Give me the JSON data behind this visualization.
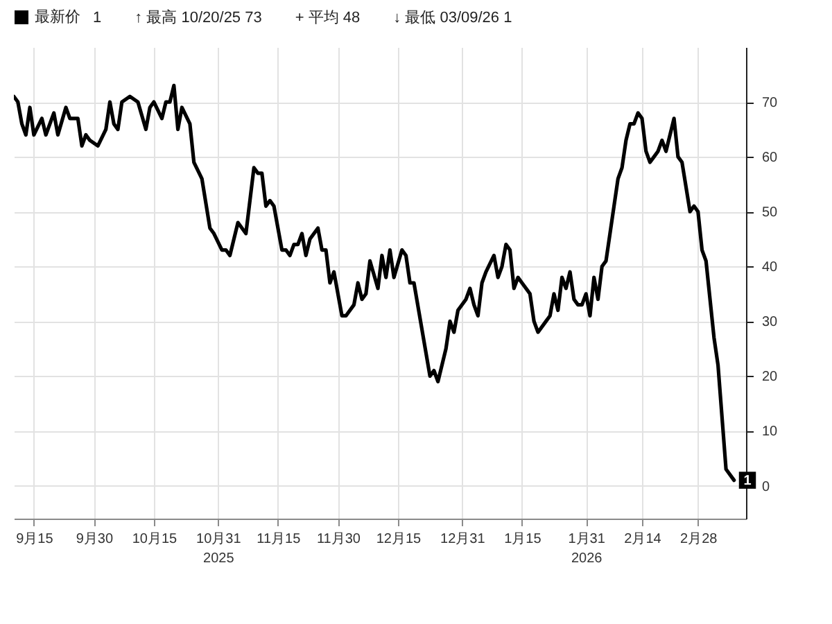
{
  "chart_data": {
    "type": "line",
    "x": [
      "2025-09-10",
      "2025-09-11",
      "2025-09-12",
      "2025-09-13",
      "2025-09-14",
      "2025-09-15",
      "2025-09-17",
      "2025-09-18",
      "2025-09-20",
      "2025-09-21",
      "2025-09-23",
      "2025-09-24",
      "2025-09-26",
      "2025-09-27",
      "2025-09-28",
      "2025-09-29",
      "2025-10-01",
      "2025-10-03",
      "2025-10-04",
      "2025-10-05",
      "2025-10-06",
      "2025-10-07",
      "2025-10-09",
      "2025-10-11",
      "2025-10-13",
      "2025-10-14",
      "2025-10-15",
      "2025-10-17",
      "2025-10-18",
      "2025-10-19",
      "2025-10-20",
      "2025-10-21",
      "2025-10-22",
      "2025-10-24",
      "2025-10-25",
      "2025-10-27",
      "2025-10-29",
      "2025-10-30",
      "2025-11-01",
      "2025-11-02",
      "2025-11-03",
      "2025-11-05",
      "2025-11-07",
      "2025-11-09",
      "2025-11-10",
      "2025-11-11",
      "2025-11-12",
      "2025-11-13",
      "2025-11-14",
      "2025-11-16",
      "2025-11-17",
      "2025-11-18",
      "2025-11-19",
      "2025-11-20",
      "2025-11-21",
      "2025-11-22",
      "2025-11-23",
      "2025-11-25",
      "2025-11-26",
      "2025-11-27",
      "2025-11-28",
      "2025-11-29",
      "2025-12-01",
      "2025-12-02",
      "2025-12-04",
      "2025-12-05",
      "2025-12-06",
      "2025-12-07",
      "2025-12-08",
      "2025-12-10",
      "2025-12-11",
      "2025-12-12",
      "2025-12-13",
      "2025-12-14",
      "2025-12-16",
      "2025-12-17",
      "2025-12-18",
      "2025-12-19",
      "2025-12-23",
      "2025-12-24",
      "2025-12-25",
      "2025-12-27",
      "2025-12-28",
      "2025-12-29",
      "2025-12-30",
      "2026-01-01",
      "2026-01-02",
      "2026-01-03",
      "2026-01-04",
      "2026-01-05",
      "2026-01-06",
      "2026-01-08",
      "2026-01-09",
      "2026-01-10",
      "2026-01-11",
      "2026-01-12",
      "2026-01-13",
      "2026-01-14",
      "2026-01-15",
      "2026-01-17",
      "2026-01-18",
      "2026-01-19",
      "2026-01-21",
      "2026-01-22",
      "2026-01-23",
      "2026-01-24",
      "2026-01-25",
      "2026-01-26",
      "2026-01-27",
      "2026-01-28",
      "2026-01-29",
      "2026-01-30",
      "2026-01-31",
      "2026-02-01",
      "2026-02-02",
      "2026-02-03",
      "2026-02-04",
      "2026-02-05",
      "2026-02-06",
      "2026-02-07",
      "2026-02-08",
      "2026-02-09",
      "2026-02-10",
      "2026-02-11",
      "2026-02-12",
      "2026-02-13",
      "2026-02-14",
      "2026-02-15",
      "2026-02-16",
      "2026-02-17",
      "2026-02-18",
      "2026-02-19",
      "2026-02-20",
      "2026-02-22",
      "2026-02-23",
      "2026-02-24",
      "2026-02-26",
      "2026-02-27",
      "2026-02-28",
      "2026-03-01",
      "2026-03-02",
      "2026-03-04",
      "2026-03-05",
      "2026-03-07",
      "2026-03-09"
    ],
    "series": [
      {
        "name": "最新价",
        "color": "#000000",
        "values": [
          71,
          70,
          66,
          64,
          69,
          64,
          67,
          64,
          68,
          64,
          69,
          67,
          67,
          62,
          64,
          63,
          62,
          65,
          70,
          66,
          65,
          70,
          71,
          70,
          65,
          69,
          70,
          67,
          70,
          70,
          73,
          65,
          69,
          66,
          59,
          56,
          47,
          46,
          43,
          43,
          42,
          48,
          46,
          58,
          57,
          57,
          51,
          52,
          51,
          43,
          43,
          42,
          44,
          44,
          46,
          42,
          45,
          47,
          43,
          43,
          37,
          39,
          31,
          31,
          33,
          37,
          34,
          35,
          41,
          36,
          42,
          38,
          43,
          38,
          43,
          42,
          37,
          37,
          20,
          21,
          19,
          25,
          30,
          28,
          32,
          34,
          36,
          33,
          31,
          37,
          39,
          42,
          38,
          40,
          44,
          43,
          36,
          38,
          37,
          35,
          30,
          28,
          30,
          31,
          35,
          32,
          38,
          36,
          39,
          34,
          33,
          33,
          35,
          31,
          38,
          34,
          40,
          41,
          46,
          51,
          56,
          58,
          63,
          66,
          66,
          68,
          67,
          61,
          59,
          60,
          61,
          63,
          61,
          67,
          60,
          59,
          50,
          51,
          50,
          43,
          41,
          27,
          22,
          3,
          1
        ],
        "value_labels": [
          null,
          null,
          null,
          null,
          null,
          null,
          null,
          null,
          null,
          null,
          null,
          null,
          null,
          null,
          null,
          null,
          null,
          null,
          null,
          null,
          null,
          null,
          null,
          null,
          null,
          null,
          null,
          null,
          null,
          null,
          null,
          null,
          null,
          null,
          null,
          null,
          null,
          null,
          null,
          null,
          null,
          null,
          null,
          null,
          null,
          null,
          null,
          null,
          null,
          null,
          null,
          null,
          null,
          null,
          null,
          null,
          null,
          null,
          null,
          null,
          null,
          null,
          null,
          null,
          null,
          null,
          null,
          null,
          null,
          null,
          null,
          null,
          null,
          null,
          null,
          null,
          null,
          null,
          null,
          null,
          null,
          null,
          null,
          null,
          null,
          null,
          null,
          null,
          null,
          null,
          null,
          null,
          null,
          null,
          null,
          null,
          null,
          null,
          null,
          null,
          null,
          null,
          null,
          null,
          null,
          null,
          null,
          null,
          null,
          null,
          null,
          null,
          null,
          null,
          null,
          null,
          null,
          null,
          null,
          null,
          null,
          null,
          null,
          null,
          null,
          null,
          null,
          null,
          null,
          null,
          null,
          null,
          null,
          null,
          null,
          null,
          null,
          null,
          null,
          null,
          null,
          null,
          null,
          null,
          "1"
        ]
      }
    ],
    "xlim": [
      "2025-09-10",
      "2026-03-12"
    ],
    "xticks": [
      {
        "value": "2025-09-15",
        "label": "9月15"
      },
      {
        "value": "2025-09-30",
        "label": "9月30"
      },
      {
        "value": "2025-10-15",
        "label": "10月15"
      },
      {
        "value": "2025-10-31",
        "label": "10月31\n2025"
      },
      {
        "value": "2025-11-15",
        "label": "11月15"
      },
      {
        "value": "2025-11-30",
        "label": "11月30"
      },
      {
        "value": "2025-12-15",
        "label": "12月15"
      },
      {
        "value": "2025-12-31",
        "label": "12月31"
      },
      {
        "value": "2026-01-15",
        "label": "1月15"
      },
      {
        "value": "2026-01-31",
        "label": "1月31\n2026"
      },
      {
        "value": "2026-02-14",
        "label": "2月14"
      },
      {
        "value": "2026-02-28",
        "label": "2月28"
      }
    ],
    "ylim": [
      -6,
      80
    ],
    "yticks": [
      0,
      10,
      20,
      30,
      40,
      50,
      60,
      70
    ],
    "annotations": [
      "↑ 最高 10/20/25 73",
      "+ 平均 48",
      "↓ 最低 03/09/26 1"
    ],
    "grid": true,
    "legend": "top left"
  }
}
